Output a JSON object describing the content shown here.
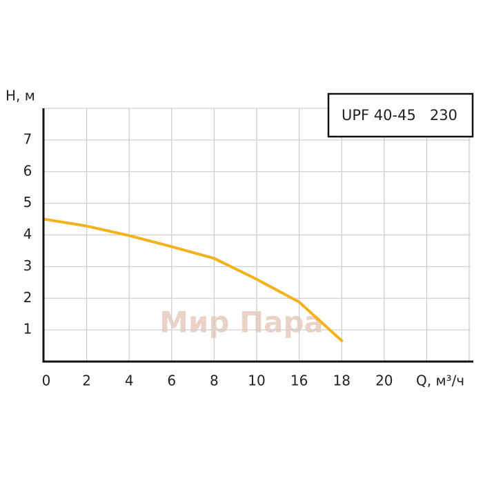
{
  "chart_data": {
    "type": "line",
    "x_label": "Q, м³/ч",
    "y_label": "H, м",
    "watermark": "Мир Пара",
    "categories": [
      "0",
      "2",
      "4",
      "6",
      "8",
      "10",
      "16",
      "18",
      "20"
    ],
    "series": [
      {
        "name": "UPF 40-45   230",
        "color": "#f2b21c",
        "values": [
          4.5,
          4.28,
          3.98,
          3.63,
          3.26,
          2.6,
          1.88,
          0.66,
          null
        ]
      }
    ],
    "ylim": [
      0,
      8
    ],
    "yticks": [
      1,
      2,
      3,
      4,
      5,
      6,
      7
    ],
    "grid": true
  }
}
